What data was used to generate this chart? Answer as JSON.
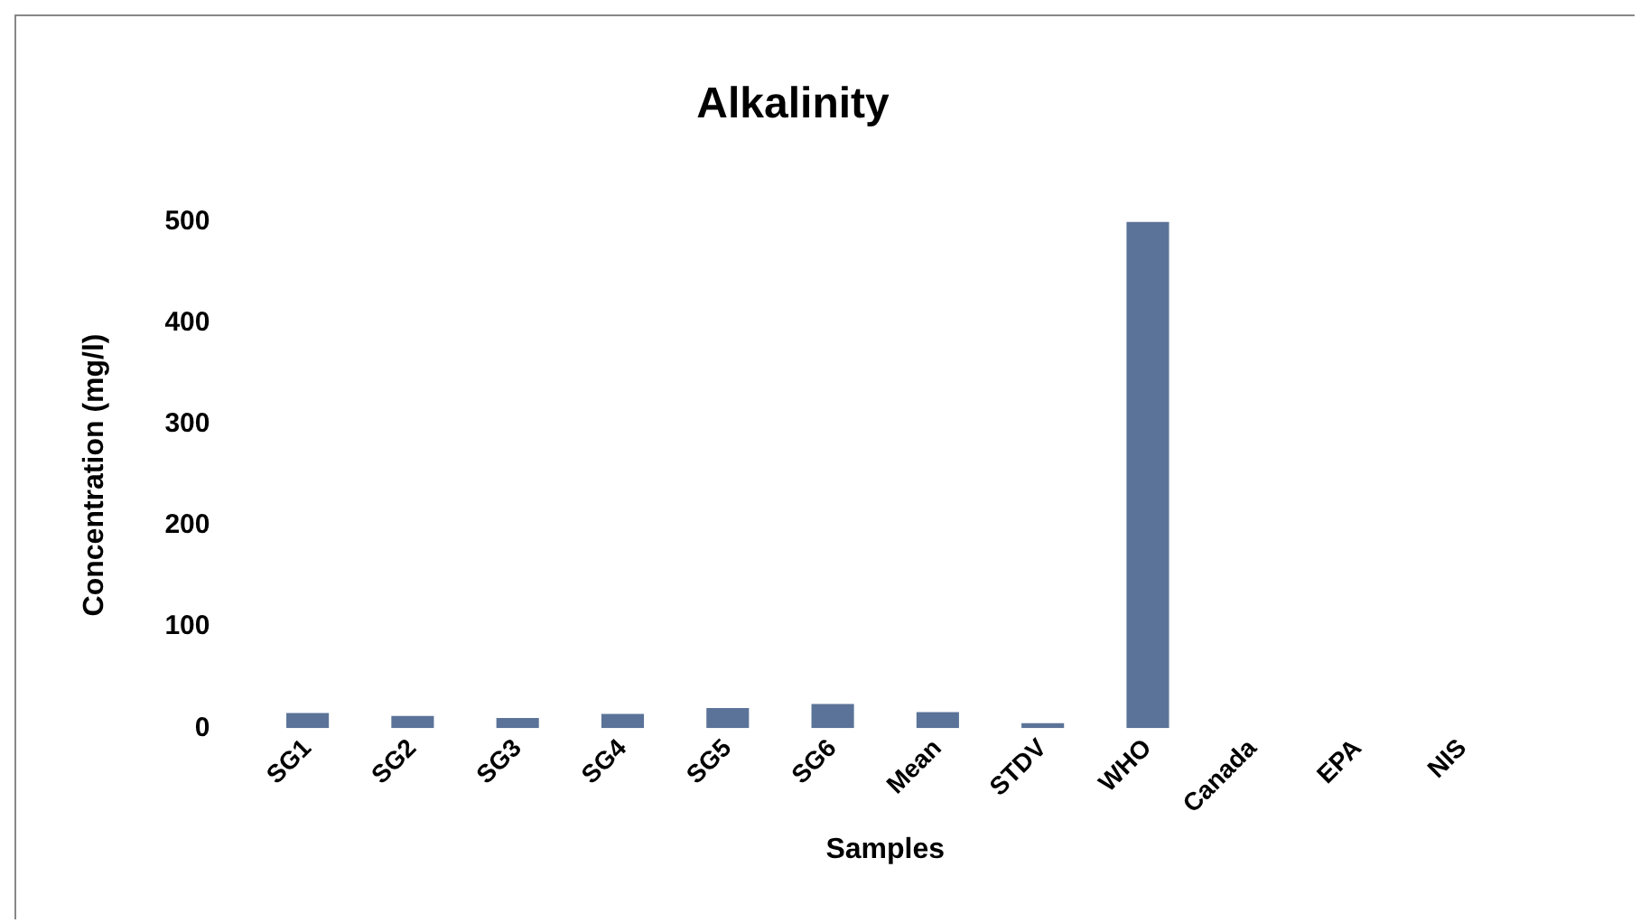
{
  "chart_data": {
    "type": "bar",
    "title": "Alkalinity",
    "xlabel": "Samples",
    "ylabel": "Concentration (mg/l)",
    "categories": [
      "SG1",
      "SG2",
      "SG3",
      "SG4",
      "SG5",
      "SG6",
      "Mean",
      "STDV",
      "WHO",
      "Canada",
      "EPA",
      "NIS"
    ],
    "values": [
      15,
      12,
      10,
      14,
      20,
      24,
      16,
      5,
      500,
      0,
      0,
      0
    ],
    "color": "#5b7398",
    "ylim": [
      0,
      500
    ],
    "yticks": [
      0,
      100,
      200,
      300,
      400,
      500
    ],
    "grid": false,
    "legend": false
  }
}
